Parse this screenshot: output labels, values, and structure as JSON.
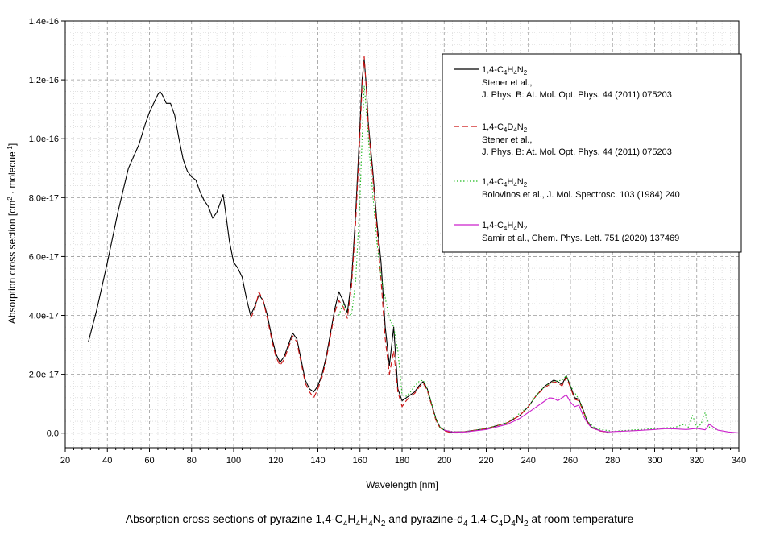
{
  "caption": {
    "parts": [
      {
        "t": "Absorption cross sections of pyrazine 1,4-C"
      },
      {
        "sub": "4"
      },
      {
        "t": "H"
      },
      {
        "sub": "4"
      },
      {
        "t": "H"
      },
      {
        "sub": "4"
      },
      {
        "t": "N"
      },
      {
        "sub": "2"
      },
      {
        "t": " and pyrazine-d"
      },
      {
        "sub": "4"
      },
      {
        "t": " 1,4-C"
      },
      {
        "sub": "4"
      },
      {
        "t": "D"
      },
      {
        "sub": "4"
      },
      {
        "t": "N"
      },
      {
        "sub": "2"
      },
      {
        "t": " at room temperature"
      }
    ]
  },
  "chart_data": {
    "type": "line",
    "xlabel": "Wavelength [nm]",
    "ylabel_parts": [
      {
        "t": "Absorption cross section [cm"
      },
      {
        "sup": "2"
      },
      {
        "t": " · molecue"
      },
      {
        "sup": "-1"
      },
      {
        "t": "]"
      }
    ],
    "xlim": [
      20,
      340
    ],
    "ylim": [
      -5e-18,
      1.4e-16
    ],
    "x_ticks": [
      20,
      40,
      60,
      80,
      100,
      120,
      140,
      160,
      180,
      200,
      220,
      240,
      260,
      280,
      300,
      320,
      340
    ],
    "y_ticks": [
      0,
      2e-17,
      4e-17,
      6e-17,
      8e-17,
      1e-16,
      1.2e-16,
      1.4e-16
    ],
    "y_tick_labels": [
      "0.0",
      "2.0e-17",
      "4.0e-17",
      "6.0e-17",
      "8.0e-17",
      "1.0e-16",
      "1.2e-16",
      "1.4e-16"
    ],
    "grid": true,
    "legend_position": "top-right",
    "series": [
      {
        "legend": [
          {
            "t": "1,4-C"
          },
          {
            "sub": "4"
          },
          {
            "t": "H"
          },
          {
            "sub": "4"
          },
          {
            "t": "N"
          },
          {
            "sub": "2"
          }
        ],
        "ref": [
          "Stener et al.,",
          "J. Phys. B: At. Mol. Opt. Phys. 44 (2011) 075203"
        ],
        "color": "#000000",
        "dash": "none",
        "x": [
          31,
          35,
          40,
          45,
          50,
          55,
          58,
          60,
          62,
          64,
          65,
          66,
          68,
          70,
          72,
          74,
          76,
          78,
          80,
          82,
          84,
          86,
          88,
          90,
          92,
          94,
          95,
          96,
          98,
          100,
          102,
          104,
          106,
          108,
          110,
          112,
          114,
          116,
          118,
          120,
          122,
          124,
          126,
          128,
          130,
          132,
          134,
          136,
          138,
          140,
          142,
          144,
          146,
          148,
          150,
          152,
          154,
          156,
          158,
          160,
          161,
          162,
          163,
          164,
          166,
          168,
          170,
          172,
          174,
          176,
          178,
          180,
          182,
          184,
          186,
          188,
          190,
          192,
          194,
          196,
          198,
          200,
          202,
          204,
          210,
          220,
          230,
          236,
          240,
          244,
          248,
          252,
          254,
          256,
          258,
          260,
          262,
          264,
          266,
          268,
          270,
          274,
          278
        ],
        "y": [
          3.1e-17,
          4.2e-17,
          5.8e-17,
          7.5e-17,
          9e-17,
          9.8e-17,
          1.05e-16,
          1.09e-16,
          1.12e-16,
          1.15e-16,
          1.16e-16,
          1.15e-16,
          1.12e-16,
          1.12e-16,
          1.08e-16,
          1e-16,
          9.3e-17,
          8.9e-17,
          8.7e-17,
          8.6e-17,
          8.2e-17,
          7.9e-17,
          7.7e-17,
          7.3e-17,
          7.5e-17,
          7.9e-17,
          8.1e-17,
          7.6e-17,
          6.5e-17,
          5.8e-17,
          5.6e-17,
          5.3e-17,
          4.6e-17,
          4e-17,
          4.3e-17,
          4.7e-17,
          4.5e-17,
          4e-17,
          3.3e-17,
          2.7e-17,
          2.4e-17,
          2.6e-17,
          3e-17,
          3.4e-17,
          3.2e-17,
          2.5e-17,
          1.8e-17,
          1.5e-17,
          1.4e-17,
          1.6e-17,
          2e-17,
          2.6e-17,
          3.4e-17,
          4.2e-17,
          4.8e-17,
          4.5e-17,
          4.1e-17,
          5.2e-17,
          7.5e-17,
          1.05e-16,
          1.2e-16,
          1.27e-16,
          1.18e-16,
          1.05e-16,
          9e-17,
          7.2e-17,
          5.8e-17,
          3.6e-17,
          2.3e-17,
          3.6e-17,
          1.5e-17,
          1.1e-17,
          1.2e-17,
          1.3e-17,
          1.4e-17,
          1.6e-17,
          1.75e-17,
          1.5e-17,
          1e-17,
          5e-18,
          2e-18,
          1e-18,
          5e-19,
          3e-19,
          5e-19,
          1.5e-18,
          3.5e-18,
          6e-18,
          9e-18,
          1.3e-17,
          1.6e-17,
          1.8e-17,
          1.75e-17,
          1.65e-17,
          1.95e-17,
          1.6e-17,
          1.2e-17,
          1.15e-17,
          8e-18,
          4e-18,
          2e-18,
          8e-19,
          3e-19
        ]
      },
      {
        "legend": [
          {
            "t": "1,4-C"
          },
          {
            "sub": "4"
          },
          {
            "t": "D"
          },
          {
            "sub": "4"
          },
          {
            "t": "N"
          },
          {
            "sub": "2"
          }
        ],
        "ref": [
          "Stener et al.,",
          "J. Phys. B: At. Mol. Opt. Phys. 44 (2011) 075203"
        ],
        "color": "#cc1111",
        "dash": "7,4",
        "x": [
          108,
          110,
          112,
          114,
          116,
          118,
          120,
          122,
          124,
          126,
          128,
          130,
          132,
          134,
          136,
          138,
          140,
          142,
          144,
          146,
          148,
          150,
          152,
          154,
          156,
          158,
          160,
          161,
          162,
          163,
          164,
          166,
          168,
          170,
          172,
          174,
          176,
          178,
          180,
          182,
          184,
          186,
          188,
          190,
          192,
          194,
          196,
          198,
          200,
          202,
          204,
          210,
          220,
          230,
          236,
          240,
          244,
          248,
          252,
          254,
          256,
          258,
          260,
          262,
          264,
          266,
          268,
          270,
          274,
          278
        ],
        "y": [
          3.9e-17,
          4.2e-17,
          4.8e-17,
          4.5e-17,
          3.9e-17,
          3.2e-17,
          2.6e-17,
          2.3e-17,
          2.5e-17,
          2.9e-17,
          3.3e-17,
          3.1e-17,
          2.4e-17,
          1.7e-17,
          1.4e-17,
          1.2e-17,
          1.5e-17,
          1.9e-17,
          2.5e-17,
          3.3e-17,
          4.1e-17,
          4.5e-17,
          4.3e-17,
          3.9e-17,
          5e-17,
          7.2e-17,
          1.02e-16,
          1.18e-16,
          1.28e-16,
          1.17e-16,
          1.04e-16,
          8.8e-17,
          7e-17,
          5.2e-17,
          3.2e-17,
          2e-17,
          2.8e-17,
          1.4e-17,
          9e-18,
          1.1e-17,
          1.25e-17,
          1.35e-17,
          1.55e-17,
          1.7e-17,
          1.45e-17,
          9.5e-18,
          4.5e-18,
          1.8e-18,
          8e-19,
          4e-19,
          3e-19,
          5e-19,
          1.5e-18,
          3.5e-18,
          6e-18,
          9e-18,
          1.3e-17,
          1.55e-17,
          1.75e-17,
          1.7e-17,
          1.6e-17,
          1.9e-17,
          1.55e-17,
          1.15e-17,
          1.1e-17,
          7.5e-18,
          3.8e-18,
          1.8e-18,
          7e-19,
          3e-19
        ]
      },
      {
        "legend": [
          {
            "t": "1,4-C"
          },
          {
            "sub": "4"
          },
          {
            "t": "H"
          },
          {
            "sub": "4"
          },
          {
            "t": "N"
          },
          {
            "sub": "2"
          }
        ],
        "ref": [
          "Bolovinos et al., J. Mol. Spectrosc. 103 (1984) 240"
        ],
        "color": "#22bb22",
        "dash": "1.5,2.5",
        "x": [
          150,
          152,
          154,
          156,
          158,
          160,
          161,
          162,
          163,
          164,
          166,
          168,
          170,
          172,
          174,
          176,
          178,
          180,
          182,
          184,
          186,
          188,
          190,
          192,
          194,
          196,
          198,
          200,
          204,
          210,
          220,
          230,
          240,
          244,
          248,
          252,
          256,
          258,
          260,
          264,
          268,
          272,
          280,
          300,
          310,
          314,
          316,
          318,
          320,
          322,
          324,
          326,
          330
        ],
        "y": [
          4e-17,
          4.4e-17,
          4.1e-17,
          4e-17,
          5.2e-17,
          8e-17,
          1e-16,
          1.18e-16,
          1.1e-16,
          1e-16,
          8.2e-17,
          6.5e-17,
          5.3e-17,
          4.6e-17,
          3.9e-17,
          3.6e-17,
          2.8e-17,
          1.3e-17,
          1.25e-17,
          1.4e-17,
          1.6e-17,
          1.75e-17,
          1.8e-17,
          1.5e-17,
          1e-17,
          5e-18,
          2e-18,
          1e-18,
          5e-19,
          5e-19,
          1.5e-18,
          3.5e-18,
          9e-18,
          1.3e-17,
          1.6e-17,
          1.75e-17,
          1.8e-17,
          1.95e-17,
          1.6e-17,
          1.15e-17,
          4e-18,
          1.5e-18,
          6e-19,
          1.5e-18,
          2e-18,
          3e-18,
          2e-18,
          6e-18,
          2e-18,
          3e-18,
          7e-18,
          2e-18,
          1e-18
        ]
      },
      {
        "legend": [
          {
            "t": "1,4-C"
          },
          {
            "sub": "4"
          },
          {
            "t": "H"
          },
          {
            "sub": "4"
          },
          {
            "t": "N"
          },
          {
            "sub": "2"
          }
        ],
        "ref": [
          "Samir et al., Chem. Phys. Lett. 751 (2020) 137469"
        ],
        "color": "#cc22cc",
        "dash": "none",
        "x": [
          200,
          204,
          210,
          220,
          230,
          236,
          240,
          244,
          248,
          250,
          252,
          254,
          256,
          258,
          260,
          262,
          264,
          266,
          268,
          270,
          274,
          278,
          280,
          290,
          300,
          305,
          310,
          315,
          320,
          324,
          326,
          330,
          335,
          340
        ],
        "y": [
          1e-18,
          4e-19,
          4e-19,
          1.2e-18,
          3e-18,
          5e-18,
          7e-18,
          9e-18,
          1.1e-17,
          1.2e-17,
          1.18e-17,
          1.1e-17,
          1.2e-17,
          1.3e-17,
          1.05e-17,
          9e-18,
          9.5e-18,
          6e-18,
          3.5e-18,
          1.8e-18,
          8e-19,
          4e-19,
          5e-19,
          8e-19,
          1.2e-18,
          1.5e-18,
          1.4e-18,
          1.2e-18,
          1.6e-18,
          1.1e-18,
          3e-18,
          1e-18,
          4e-19,
          1e-19
        ]
      }
    ]
  }
}
